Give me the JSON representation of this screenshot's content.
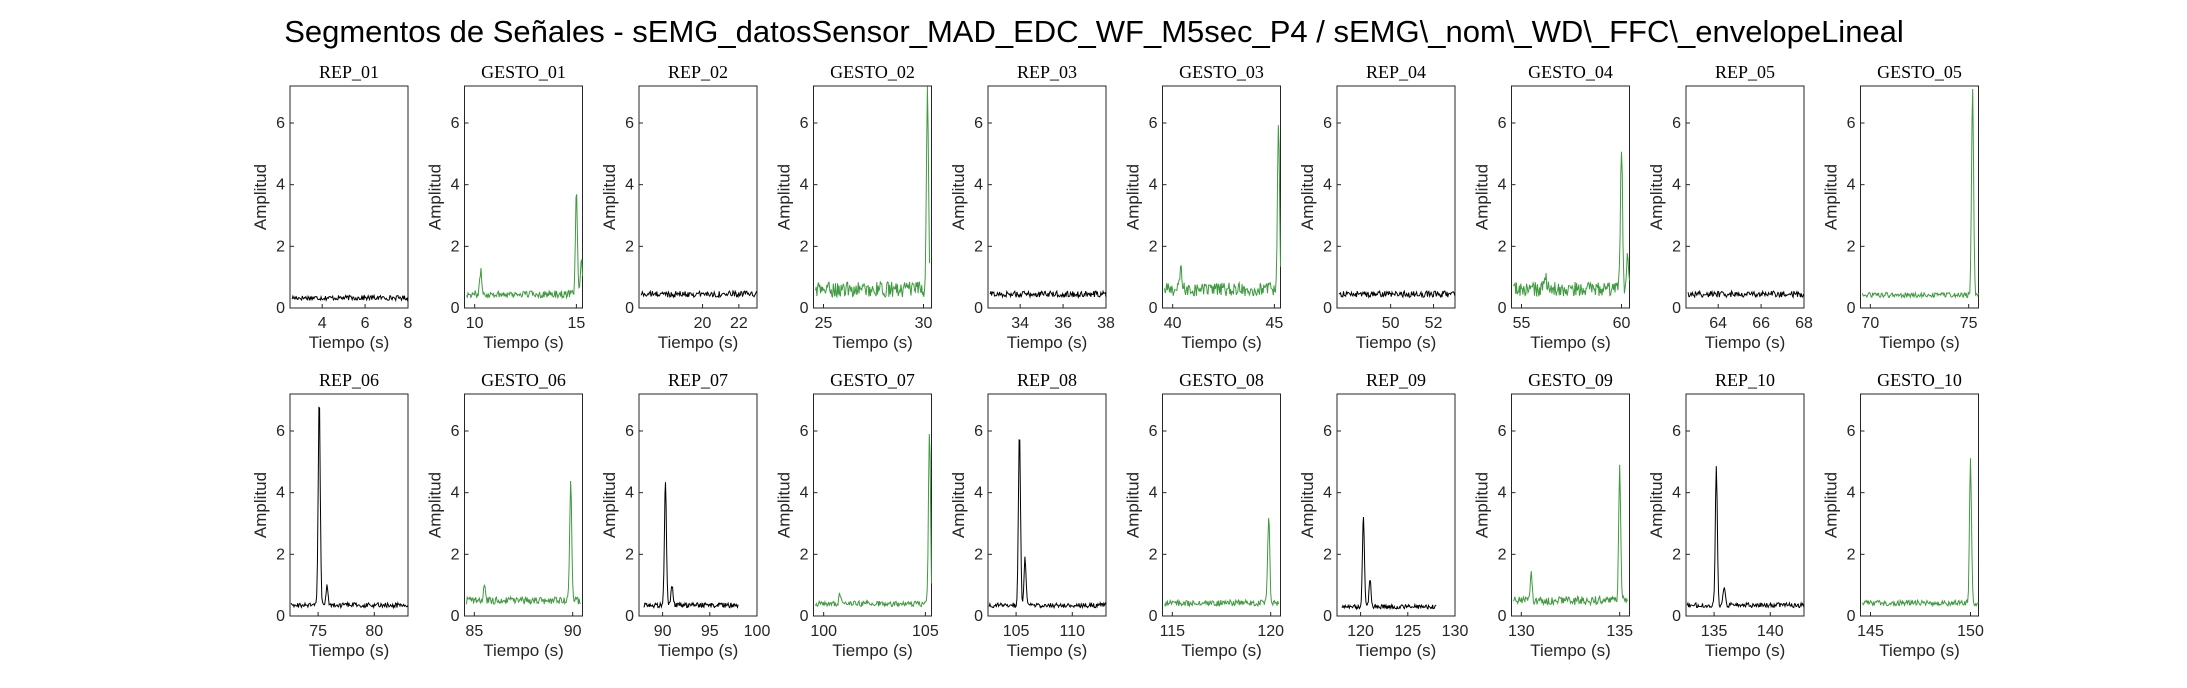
{
  "figure": {
    "title": "Segmentos de Señales - sEMG_datosSensor_MAD_EDC_WF_M5sec_P4 / sEMG\\_nom\\_WD\\_FFC\\_envelopeLineal"
  },
  "colors": {
    "rep": "#000000",
    "gesto": "#3f9b3f"
  },
  "chart_data": [
    {
      "type": "line",
      "title": "REP_01",
      "xlabel": "Tiempo (s)",
      "ylabel": "Amplitud",
      "xlim": [
        2.5,
        8
      ],
      "ylim": [
        0,
        7.2
      ],
      "xticks": [
        4,
        6,
        8
      ],
      "yticks": [
        0,
        2,
        4,
        6
      ],
      "color": "rep",
      "x_range": [
        2.6,
        8
      ],
      "baseline": 0.33,
      "noise": 0.08,
      "spikes": []
    },
    {
      "type": "line",
      "title": "GESTO_01",
      "xlabel": "Tiempo (s)",
      "ylabel": "Amplitud",
      "xlim": [
        9.5,
        15.3
      ],
      "ylim": [
        0,
        7.2
      ],
      "xticks": [
        10,
        15
      ],
      "yticks": [
        0,
        2,
        4,
        6
      ],
      "color": "gesto",
      "x_range": [
        9.6,
        15.3
      ],
      "baseline": 0.45,
      "noise": 0.12,
      "spikes": [
        [
          10.3,
          1.2
        ],
        [
          15.0,
          3.8
        ],
        [
          15.25,
          1.5
        ]
      ]
    },
    {
      "type": "line",
      "title": "REP_02",
      "xlabel": "Tiempo (s)",
      "ylabel": "Amplitud",
      "xlim": [
        16.5,
        23
      ],
      "ylim": [
        0,
        7.2
      ],
      "xticks": [
        20,
        22
      ],
      "yticks": [
        0,
        2,
        4,
        6
      ],
      "color": "rep",
      "x_range": [
        16.6,
        23
      ],
      "baseline": 0.45,
      "noise": 0.1,
      "spikes": []
    },
    {
      "type": "line",
      "title": "GESTO_02",
      "xlabel": "Tiempo (s)",
      "ylabel": "Amplitud",
      "xlim": [
        24.5,
        30.4
      ],
      "ylim": [
        0,
        7.2
      ],
      "xticks": [
        25,
        30
      ],
      "yticks": [
        0,
        2,
        4,
        6
      ],
      "color": "gesto",
      "x_range": [
        24.6,
        30.3
      ],
      "baseline": 0.6,
      "noise": 0.25,
      "spikes": [
        [
          30.2,
          7.0
        ]
      ]
    },
    {
      "type": "line",
      "title": "REP_03",
      "xlabel": "Tiempo (s)",
      "ylabel": "Amplitud",
      "xlim": [
        32.5,
        38
      ],
      "ylim": [
        0,
        7.2
      ],
      "xticks": [
        34,
        36,
        38
      ],
      "yticks": [
        0,
        2,
        4,
        6
      ],
      "color": "rep",
      "x_range": [
        32.6,
        38
      ],
      "baseline": 0.45,
      "noise": 0.1,
      "spikes": []
    },
    {
      "type": "line",
      "title": "GESTO_03",
      "xlabel": "Tiempo (s)",
      "ylabel": "Amplitud",
      "xlim": [
        39.5,
        45.3
      ],
      "ylim": [
        0,
        7.2
      ],
      "xticks": [
        40,
        45
      ],
      "yticks": [
        0,
        2,
        4,
        6
      ],
      "color": "gesto",
      "x_range": [
        39.6,
        45.3
      ],
      "baseline": 0.6,
      "noise": 0.22,
      "spikes": [
        [
          40.4,
          1.3
        ],
        [
          45.2,
          6.1
        ]
      ]
    },
    {
      "type": "line",
      "title": "REP_04",
      "xlabel": "Tiempo (s)",
      "ylabel": "Amplitud",
      "xlim": [
        47.5,
        53
      ],
      "ylim": [
        0,
        7.2
      ],
      "xticks": [
        50,
        52
      ],
      "yticks": [
        0,
        2,
        4,
        6
      ],
      "color": "rep",
      "x_range": [
        47.6,
        53
      ],
      "baseline": 0.45,
      "noise": 0.1,
      "spikes": []
    },
    {
      "type": "line",
      "title": "GESTO_04",
      "xlabel": "Tiempo (s)",
      "ylabel": "Amplitud",
      "xlim": [
        54.5,
        60.4
      ],
      "ylim": [
        0,
        7.2
      ],
      "xticks": [
        55,
        60
      ],
      "yticks": [
        0,
        2,
        4,
        6
      ],
      "color": "gesto",
      "x_range": [
        54.6,
        60.4
      ],
      "baseline": 0.6,
      "noise": 0.25,
      "spikes": [
        [
          56.2,
          1.1
        ],
        [
          60.0,
          5.2
        ],
        [
          60.3,
          1.8
        ]
      ]
    },
    {
      "type": "line",
      "title": "REP_05",
      "xlabel": "Tiempo (s)",
      "ylabel": "Amplitud",
      "xlim": [
        62.5,
        68
      ],
      "ylim": [
        0,
        7.2
      ],
      "xticks": [
        64,
        66,
        68
      ],
      "yticks": [
        0,
        2,
        4,
        6
      ],
      "color": "rep",
      "x_range": [
        62.6,
        68
      ],
      "baseline": 0.45,
      "noise": 0.1,
      "spikes": []
    },
    {
      "type": "line",
      "title": "GESTO_05",
      "xlabel": "Tiempo (s)",
      "ylabel": "Amplitud",
      "xlim": [
        69.5,
        75.5
      ],
      "ylim": [
        0,
        7.2
      ],
      "xticks": [
        70,
        75
      ],
      "yticks": [
        0,
        2,
        4,
        6
      ],
      "color": "gesto",
      "x_range": [
        69.6,
        75.5
      ],
      "baseline": 0.42,
      "noise": 0.08,
      "spikes": [
        [
          75.2,
          7.2
        ]
      ]
    },
    {
      "type": "line",
      "title": "REP_06",
      "xlabel": "Tiempo (s)",
      "ylabel": "Amplitud",
      "xlim": [
        72.5,
        83
      ],
      "ylim": [
        0,
        7.2
      ],
      "xticks": [
        75,
        80
      ],
      "yticks": [
        0,
        2,
        4,
        6
      ],
      "color": "rep",
      "x_range": [
        72.6,
        83
      ],
      "baseline": 0.35,
      "noise": 0.08,
      "spikes": [
        [
          75.1,
          7.2
        ],
        [
          75.8,
          1.0
        ]
      ]
    },
    {
      "type": "line",
      "title": "GESTO_06",
      "xlabel": "Tiempo (s)",
      "ylabel": "Amplitud",
      "xlim": [
        84.5,
        90.5
      ],
      "ylim": [
        0,
        7.2
      ],
      "xticks": [
        85,
        90
      ],
      "yticks": [
        0,
        2,
        4,
        6
      ],
      "color": "gesto",
      "x_range": [
        84.6,
        90.4
      ],
      "baseline": 0.5,
      "noise": 0.12,
      "spikes": [
        [
          85.5,
          1.0
        ],
        [
          89.9,
          4.3
        ]
      ]
    },
    {
      "type": "line",
      "title": "REP_07",
      "xlabel": "Tiempo (s)",
      "ylabel": "Amplitud",
      "xlim": [
        87.5,
        100
      ],
      "ylim": [
        0,
        7.2
      ],
      "xticks": [
        90,
        95,
        100
      ],
      "yticks": [
        0,
        2,
        4,
        6
      ],
      "color": "rep",
      "x_range": [
        88,
        98
      ],
      "baseline": 0.35,
      "noise": 0.08,
      "spikes": [
        [
          90.3,
          4.4
        ],
        [
          91.0,
          1.0
        ]
      ]
    },
    {
      "type": "line",
      "title": "GESTO_07",
      "xlabel": "Tiempo (s)",
      "ylabel": "Amplitud",
      "xlim": [
        99.5,
        105.3
      ],
      "ylim": [
        0,
        7.2
      ],
      "xticks": [
        100,
        105
      ],
      "yticks": [
        0,
        2,
        4,
        6
      ],
      "color": "gesto",
      "x_range": [
        99.6,
        105.3
      ],
      "baseline": 0.4,
      "noise": 0.09,
      "spikes": [
        [
          100.8,
          0.7
        ],
        [
          105.2,
          6.0
        ]
      ]
    },
    {
      "type": "line",
      "title": "REP_08",
      "xlabel": "Tiempo (s)",
      "ylabel": "Amplitud",
      "xlim": [
        102.5,
        113
      ],
      "ylim": [
        0,
        7.2
      ],
      "xticks": [
        105,
        110
      ],
      "yticks": [
        0,
        2,
        4,
        6
      ],
      "color": "rep",
      "x_range": [
        102.6,
        113
      ],
      "baseline": 0.35,
      "noise": 0.08,
      "spikes": [
        [
          105.3,
          6.1
        ],
        [
          105.8,
          1.9
        ]
      ]
    },
    {
      "type": "line",
      "title": "GESTO_08",
      "xlabel": "Tiempo (s)",
      "ylabel": "Amplitud",
      "xlim": [
        114.5,
        120.5
      ],
      "ylim": [
        0,
        7.2
      ],
      "xticks": [
        115,
        120
      ],
      "yticks": [
        0,
        2,
        4,
        6
      ],
      "color": "gesto",
      "x_range": [
        114.6,
        120.4
      ],
      "baseline": 0.42,
      "noise": 0.1,
      "spikes": [
        [
          119.9,
          3.3
        ]
      ]
    },
    {
      "type": "line",
      "title": "REP_09",
      "xlabel": "Tiempo (s)",
      "ylabel": "Amplitud",
      "xlim": [
        117.5,
        130
      ],
      "ylim": [
        0,
        7.2
      ],
      "xticks": [
        120,
        125,
        130
      ],
      "yticks": [
        0,
        2,
        4,
        6
      ],
      "color": "rep",
      "x_range": [
        118,
        128
      ],
      "baseline": 0.3,
      "noise": 0.07,
      "spikes": [
        [
          120.3,
          3.3
        ],
        [
          121.0,
          1.2
        ]
      ]
    },
    {
      "type": "line",
      "title": "GESTO_09",
      "xlabel": "Tiempo (s)",
      "ylabel": "Amplitud",
      "xlim": [
        129.5,
        135.5
      ],
      "ylim": [
        0,
        7.2
      ],
      "xticks": [
        130,
        135
      ],
      "yticks": [
        0,
        2,
        4,
        6
      ],
      "color": "gesto",
      "x_range": [
        129.6,
        135.4
      ],
      "baseline": 0.5,
      "noise": 0.14,
      "spikes": [
        [
          130.5,
          1.4
        ],
        [
          135.0,
          4.8
        ]
      ]
    },
    {
      "type": "line",
      "title": "REP_10",
      "xlabel": "Tiempo (s)",
      "ylabel": "Amplitud",
      "xlim": [
        132.5,
        143
      ],
      "ylim": [
        0,
        7.2
      ],
      "xticks": [
        135,
        140
      ],
      "yticks": [
        0,
        2,
        4,
        6
      ],
      "color": "rep",
      "x_range": [
        132.6,
        143
      ],
      "baseline": 0.35,
      "noise": 0.08,
      "spikes": [
        [
          135.2,
          4.8
        ],
        [
          135.9,
          1.0
        ]
      ]
    },
    {
      "type": "line",
      "title": "GESTO_10",
      "xlabel": "Tiempo (s)",
      "ylabel": "Amplitud",
      "xlim": [
        144.5,
        150.4
      ],
      "ylim": [
        0,
        7.2
      ],
      "xticks": [
        145,
        150
      ],
      "yticks": [
        0,
        2,
        4,
        6
      ],
      "color": "gesto",
      "x_range": [
        144.6,
        150.4
      ],
      "baseline": 0.42,
      "noise": 0.09,
      "spikes": [
        [
          150.0,
          5.1
        ]
      ]
    }
  ]
}
